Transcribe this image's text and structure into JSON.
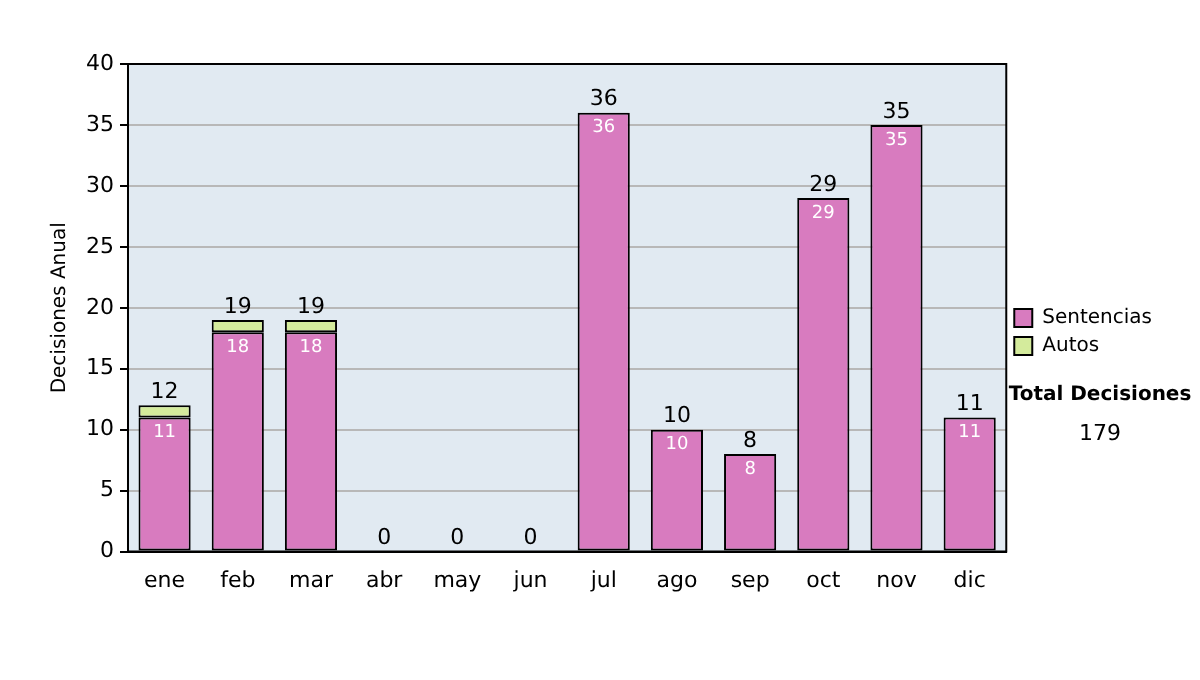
{
  "chart_data": {
    "type": "bar",
    "ylabel": "Decisiones Anual",
    "categories": [
      "ene",
      "feb",
      "mar",
      "abr",
      "may",
      "jun",
      "jul",
      "ago",
      "sep",
      "oct",
      "nov",
      "dic"
    ],
    "series": [
      {
        "name": "Sentencias",
        "color": "#d87bbf",
        "values": [
          11,
          18,
          18,
          0,
          0,
          0,
          36,
          10,
          8,
          29,
          35,
          11
        ],
        "value_labels": [
          "11",
          "18",
          "18",
          null,
          null,
          null,
          "36",
          "10",
          "8",
          "29",
          "35",
          "11"
        ]
      },
      {
        "name": "Autos",
        "color": "#d4eb9c",
        "values": [
          1,
          1,
          1,
          0,
          0,
          0,
          0,
          0,
          0,
          0,
          0,
          0
        ]
      }
    ],
    "stacked": true,
    "totals": [
      "12",
      "19",
      "19",
      "0",
      "0",
      "0",
      "36",
      "10",
      "8",
      "29",
      "35",
      "11"
    ],
    "ylim": [
      0,
      40
    ],
    "yticks": [
      0,
      5,
      10,
      15,
      20,
      25,
      30,
      35,
      40
    ],
    "grid": "y",
    "legend": "right",
    "annotations": [
      "Total Decisiones",
      "179"
    ]
  }
}
